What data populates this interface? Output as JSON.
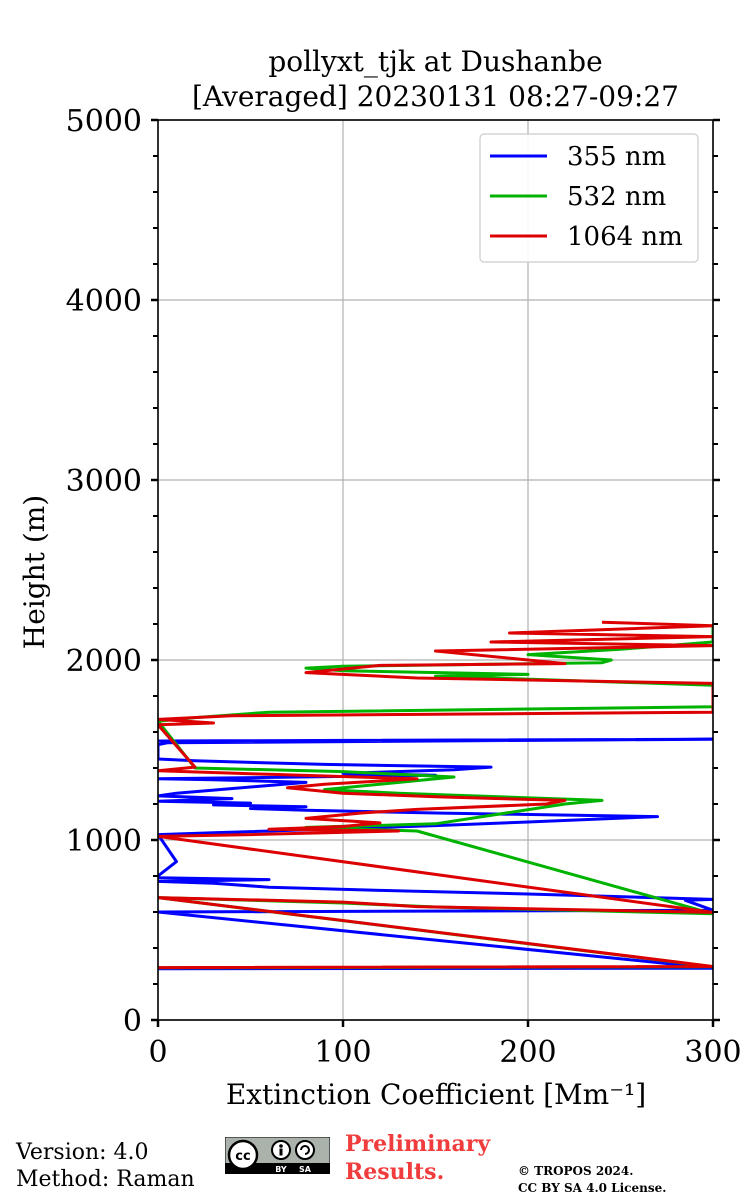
{
  "chart_data": {
    "type": "line",
    "title_line1": "pollyxt_tjk at Dushanbe",
    "title_line2": "[Averaged] 20230131 08:27-09:27",
    "xlabel": "Extinction Coefficient [Mm⁻¹]",
    "ylabel": "Height (m)",
    "xlim": [
      0,
      300
    ],
    "ylim": [
      0,
      5000
    ],
    "xticks": [
      0,
      100,
      200,
      300
    ],
    "yticks": [
      0,
      1000,
      2000,
      3000,
      4000,
      5000
    ],
    "grid": true,
    "legend_position": "top-right",
    "series": [
      {
        "name": "355 nm",
        "color": "#0000ff",
        "points": [
          [
            0,
            285
          ],
          [
            300,
            288
          ],
          [
            0,
            600
          ],
          [
            300,
            610
          ],
          [
            285,
            665
          ],
          [
            300,
            670
          ],
          [
            200,
            700
          ],
          [
            120,
            720
          ],
          [
            60,
            738
          ],
          [
            30,
            760
          ],
          [
            0,
            770
          ],
          [
            60,
            780
          ],
          [
            0,
            790
          ],
          [
            0,
            800
          ],
          [
            10,
            880
          ],
          [
            0,
            1030
          ],
          [
            30,
            1040
          ],
          [
            150,
            1080
          ],
          [
            200,
            1100
          ],
          [
            270,
            1130
          ],
          [
            150,
            1150
          ],
          [
            80,
            1165
          ],
          [
            50,
            1175
          ],
          [
            80,
            1185
          ],
          [
            30,
            1195
          ],
          [
            50,
            1205
          ],
          [
            0,
            1215
          ],
          [
            40,
            1230
          ],
          [
            0,
            1245
          ],
          [
            10,
            1260
          ],
          [
            80,
            1320
          ],
          [
            30,
            1335
          ],
          [
            0,
            1340
          ],
          [
            40,
            1345
          ],
          [
            150,
            1360
          ],
          [
            100,
            1370
          ],
          [
            160,
            1390
          ],
          [
            180,
            1405
          ],
          [
            90,
            1420
          ],
          [
            20,
            1440
          ],
          [
            0,
            1450
          ],
          [
            0,
            1530
          ],
          [
            5,
            1540
          ],
          [
            300,
            1560
          ],
          [
            0,
            1550
          ]
        ]
      },
      {
        "name": "532 nm",
        "color": "#00b300",
        "points": [
          [
            0,
            290
          ],
          [
            300,
            296
          ],
          [
            0,
            680
          ],
          [
            100,
            650
          ],
          [
            150,
            628
          ],
          [
            300,
            590
          ],
          [
            140,
            1050
          ],
          [
            80,
            1070
          ],
          [
            150,
            1090
          ],
          [
            220,
            1200
          ],
          [
            240,
            1220
          ],
          [
            130,
            1260
          ],
          [
            90,
            1280
          ],
          [
            160,
            1350
          ],
          [
            100,
            1380
          ],
          [
            20,
            1400
          ],
          [
            0,
            1660
          ],
          [
            20,
            1680
          ],
          [
            60,
            1710
          ],
          [
            300,
            1740
          ],
          [
            300,
            1780
          ],
          [
            300,
            1860
          ],
          [
            150,
            1910
          ],
          [
            200,
            1920
          ],
          [
            100,
            1940
          ],
          [
            80,
            1955
          ],
          [
            100,
            1965
          ],
          [
            240,
            1985
          ],
          [
            245,
            2000
          ],
          [
            200,
            2030
          ],
          [
            250,
            2060
          ],
          [
            300,
            2100
          ],
          [
            300,
            2140
          ],
          [
            300,
            2170
          ],
          [
            300,
            2200
          ]
        ]
      },
      {
        "name": "1064 nm",
        "color": "#dd0000",
        "points": [
          [
            0,
            291
          ],
          [
            300,
            297
          ],
          [
            0,
            680
          ],
          [
            100,
            655
          ],
          [
            140,
            630
          ],
          [
            300,
            598
          ],
          [
            0,
            1020
          ],
          [
            50,
            1030
          ],
          [
            130,
            1050
          ],
          [
            60,
            1060
          ],
          [
            100,
            1075
          ],
          [
            120,
            1095
          ],
          [
            80,
            1120
          ],
          [
            110,
            1150
          ],
          [
            140,
            1170
          ],
          [
            210,
            1200
          ],
          [
            220,
            1220
          ],
          [
            150,
            1240
          ],
          [
            100,
            1260
          ],
          [
            70,
            1290
          ],
          [
            90,
            1310
          ],
          [
            140,
            1340
          ],
          [
            60,
            1365
          ],
          [
            0,
            1385
          ],
          [
            20,
            1405
          ],
          [
            0,
            1640
          ],
          [
            30,
            1650
          ],
          [
            0,
            1670
          ],
          [
            40,
            1690
          ],
          [
            300,
            1710
          ],
          [
            300,
            1760
          ],
          [
            300,
            1800
          ],
          [
            300,
            1870
          ],
          [
            140,
            1900
          ],
          [
            80,
            1930
          ],
          [
            120,
            1970
          ],
          [
            220,
            1980
          ],
          [
            200,
            2000
          ],
          [
            150,
            2050
          ],
          [
            300,
            2080
          ],
          [
            180,
            2100
          ],
          [
            300,
            2130
          ],
          [
            190,
            2150
          ],
          [
            300,
            2190
          ],
          [
            240,
            2210
          ]
        ]
      }
    ]
  },
  "footer": {
    "version": "Version: 4.0",
    "method": "Method: Raman",
    "prelim_line1": "Preliminary",
    "prelim_line2": "Results.",
    "copyright_line1": "© TROPOS 2024.",
    "copyright_line2": "CC BY SA 4.0 License.",
    "cc_badge": {
      "cc": "cc",
      "by": "BY",
      "sa": "SA"
    }
  }
}
